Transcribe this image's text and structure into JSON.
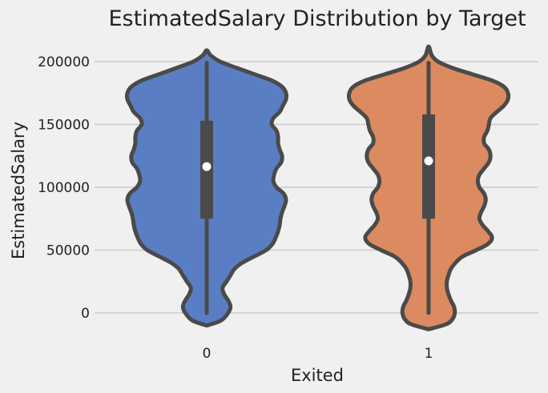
{
  "chart_data": {
    "type": "violin",
    "title": "EstimatedSalary Distribution by Target",
    "xlabel": "Exited",
    "ylabel": "EstimatedSalary",
    "categories": [
      "0",
      "1"
    ],
    "yticks": [
      0,
      50000,
      100000,
      150000,
      200000
    ],
    "ylim": [
      -13000,
      218000
    ],
    "grid": "y",
    "colors": {
      "0": "#5a7ec4",
      "1": "#dc8a5f",
      "edge": "#4a4a4a"
    },
    "series": [
      {
        "category": "0",
        "fill": "#5a7ec4",
        "quartiles": [
          75000,
          153000
        ],
        "median": 116500,
        "range": [
          0,
          199000
        ],
        "density_profile": [
          [
            -10000,
            0
          ],
          [
            -6000,
            0.18
          ],
          [
            0,
            0.27
          ],
          [
            5000,
            0.3
          ],
          [
            10000,
            0.27
          ],
          [
            15000,
            0.22
          ],
          [
            20000,
            0.2
          ],
          [
            25000,
            0.25
          ],
          [
            30000,
            0.3
          ],
          [
            35000,
            0.35
          ],
          [
            40000,
            0.45
          ],
          [
            45000,
            0.6
          ],
          [
            50000,
            0.75
          ],
          [
            55000,
            0.83
          ],
          [
            60000,
            0.87
          ],
          [
            65000,
            0.9
          ],
          [
            70000,
            0.92
          ],
          [
            75000,
            0.93
          ],
          [
            80000,
            0.95
          ],
          [
            85000,
            0.98
          ],
          [
            90000,
            1.0
          ],
          [
            95000,
            0.97
          ],
          [
            100000,
            0.88
          ],
          [
            105000,
            0.84
          ],
          [
            110000,
            0.85
          ],
          [
            115000,
            0.88
          ],
          [
            120000,
            0.94
          ],
          [
            125000,
            0.95
          ],
          [
            130000,
            0.92
          ],
          [
            135000,
            0.9
          ],
          [
            140000,
            0.9
          ],
          [
            145000,
            0.88
          ],
          [
            150000,
            0.82
          ],
          [
            155000,
            0.84
          ],
          [
            160000,
            0.92
          ],
          [
            165000,
            0.96
          ],
          [
            170000,
            1.0
          ],
          [
            175000,
            1.0
          ],
          [
            180000,
            0.95
          ],
          [
            185000,
            0.82
          ],
          [
            190000,
            0.6
          ],
          [
            195000,
            0.38
          ],
          [
            200000,
            0.17
          ],
          [
            205000,
            0.05
          ],
          [
            209000,
            0
          ]
        ]
      },
      {
        "category": "1",
        "fill": "#dc8a5f",
        "quartiles": [
          75000,
          158000
        ],
        "median": 121000,
        "range": [
          0,
          199000
        ],
        "density_profile": [
          [
            -13000,
            0
          ],
          [
            -9000,
            0.22
          ],
          [
            -5000,
            0.3
          ],
          [
            0,
            0.33
          ],
          [
            5000,
            0.32
          ],
          [
            10000,
            0.28
          ],
          [
            15000,
            0.25
          ],
          [
            20000,
            0.23
          ],
          [
            25000,
            0.23
          ],
          [
            30000,
            0.25
          ],
          [
            35000,
            0.28
          ],
          [
            40000,
            0.34
          ],
          [
            45000,
            0.43
          ],
          [
            50000,
            0.6
          ],
          [
            55000,
            0.75
          ],
          [
            60000,
            0.8
          ],
          [
            65000,
            0.75
          ],
          [
            70000,
            0.68
          ],
          [
            75000,
            0.64
          ],
          [
            80000,
            0.66
          ],
          [
            85000,
            0.7
          ],
          [
            90000,
            0.72
          ],
          [
            95000,
            0.7
          ],
          [
            100000,
            0.64
          ],
          [
            105000,
            0.62
          ],
          [
            110000,
            0.64
          ],
          [
            115000,
            0.7
          ],
          [
            120000,
            0.76
          ],
          [
            125000,
            0.78
          ],
          [
            130000,
            0.76
          ],
          [
            135000,
            0.7
          ],
          [
            140000,
            0.7
          ],
          [
            145000,
            0.74
          ],
          [
            150000,
            0.76
          ],
          [
            155000,
            0.78
          ],
          [
            160000,
            0.86
          ],
          [
            165000,
            0.95
          ],
          [
            170000,
            1.0
          ],
          [
            175000,
            1.0
          ],
          [
            180000,
            0.95
          ],
          [
            185000,
            0.8
          ],
          [
            190000,
            0.55
          ],
          [
            195000,
            0.3
          ],
          [
            200000,
            0.12
          ],
          [
            205000,
            0.04
          ],
          [
            212000,
            0
          ]
        ]
      }
    ]
  }
}
